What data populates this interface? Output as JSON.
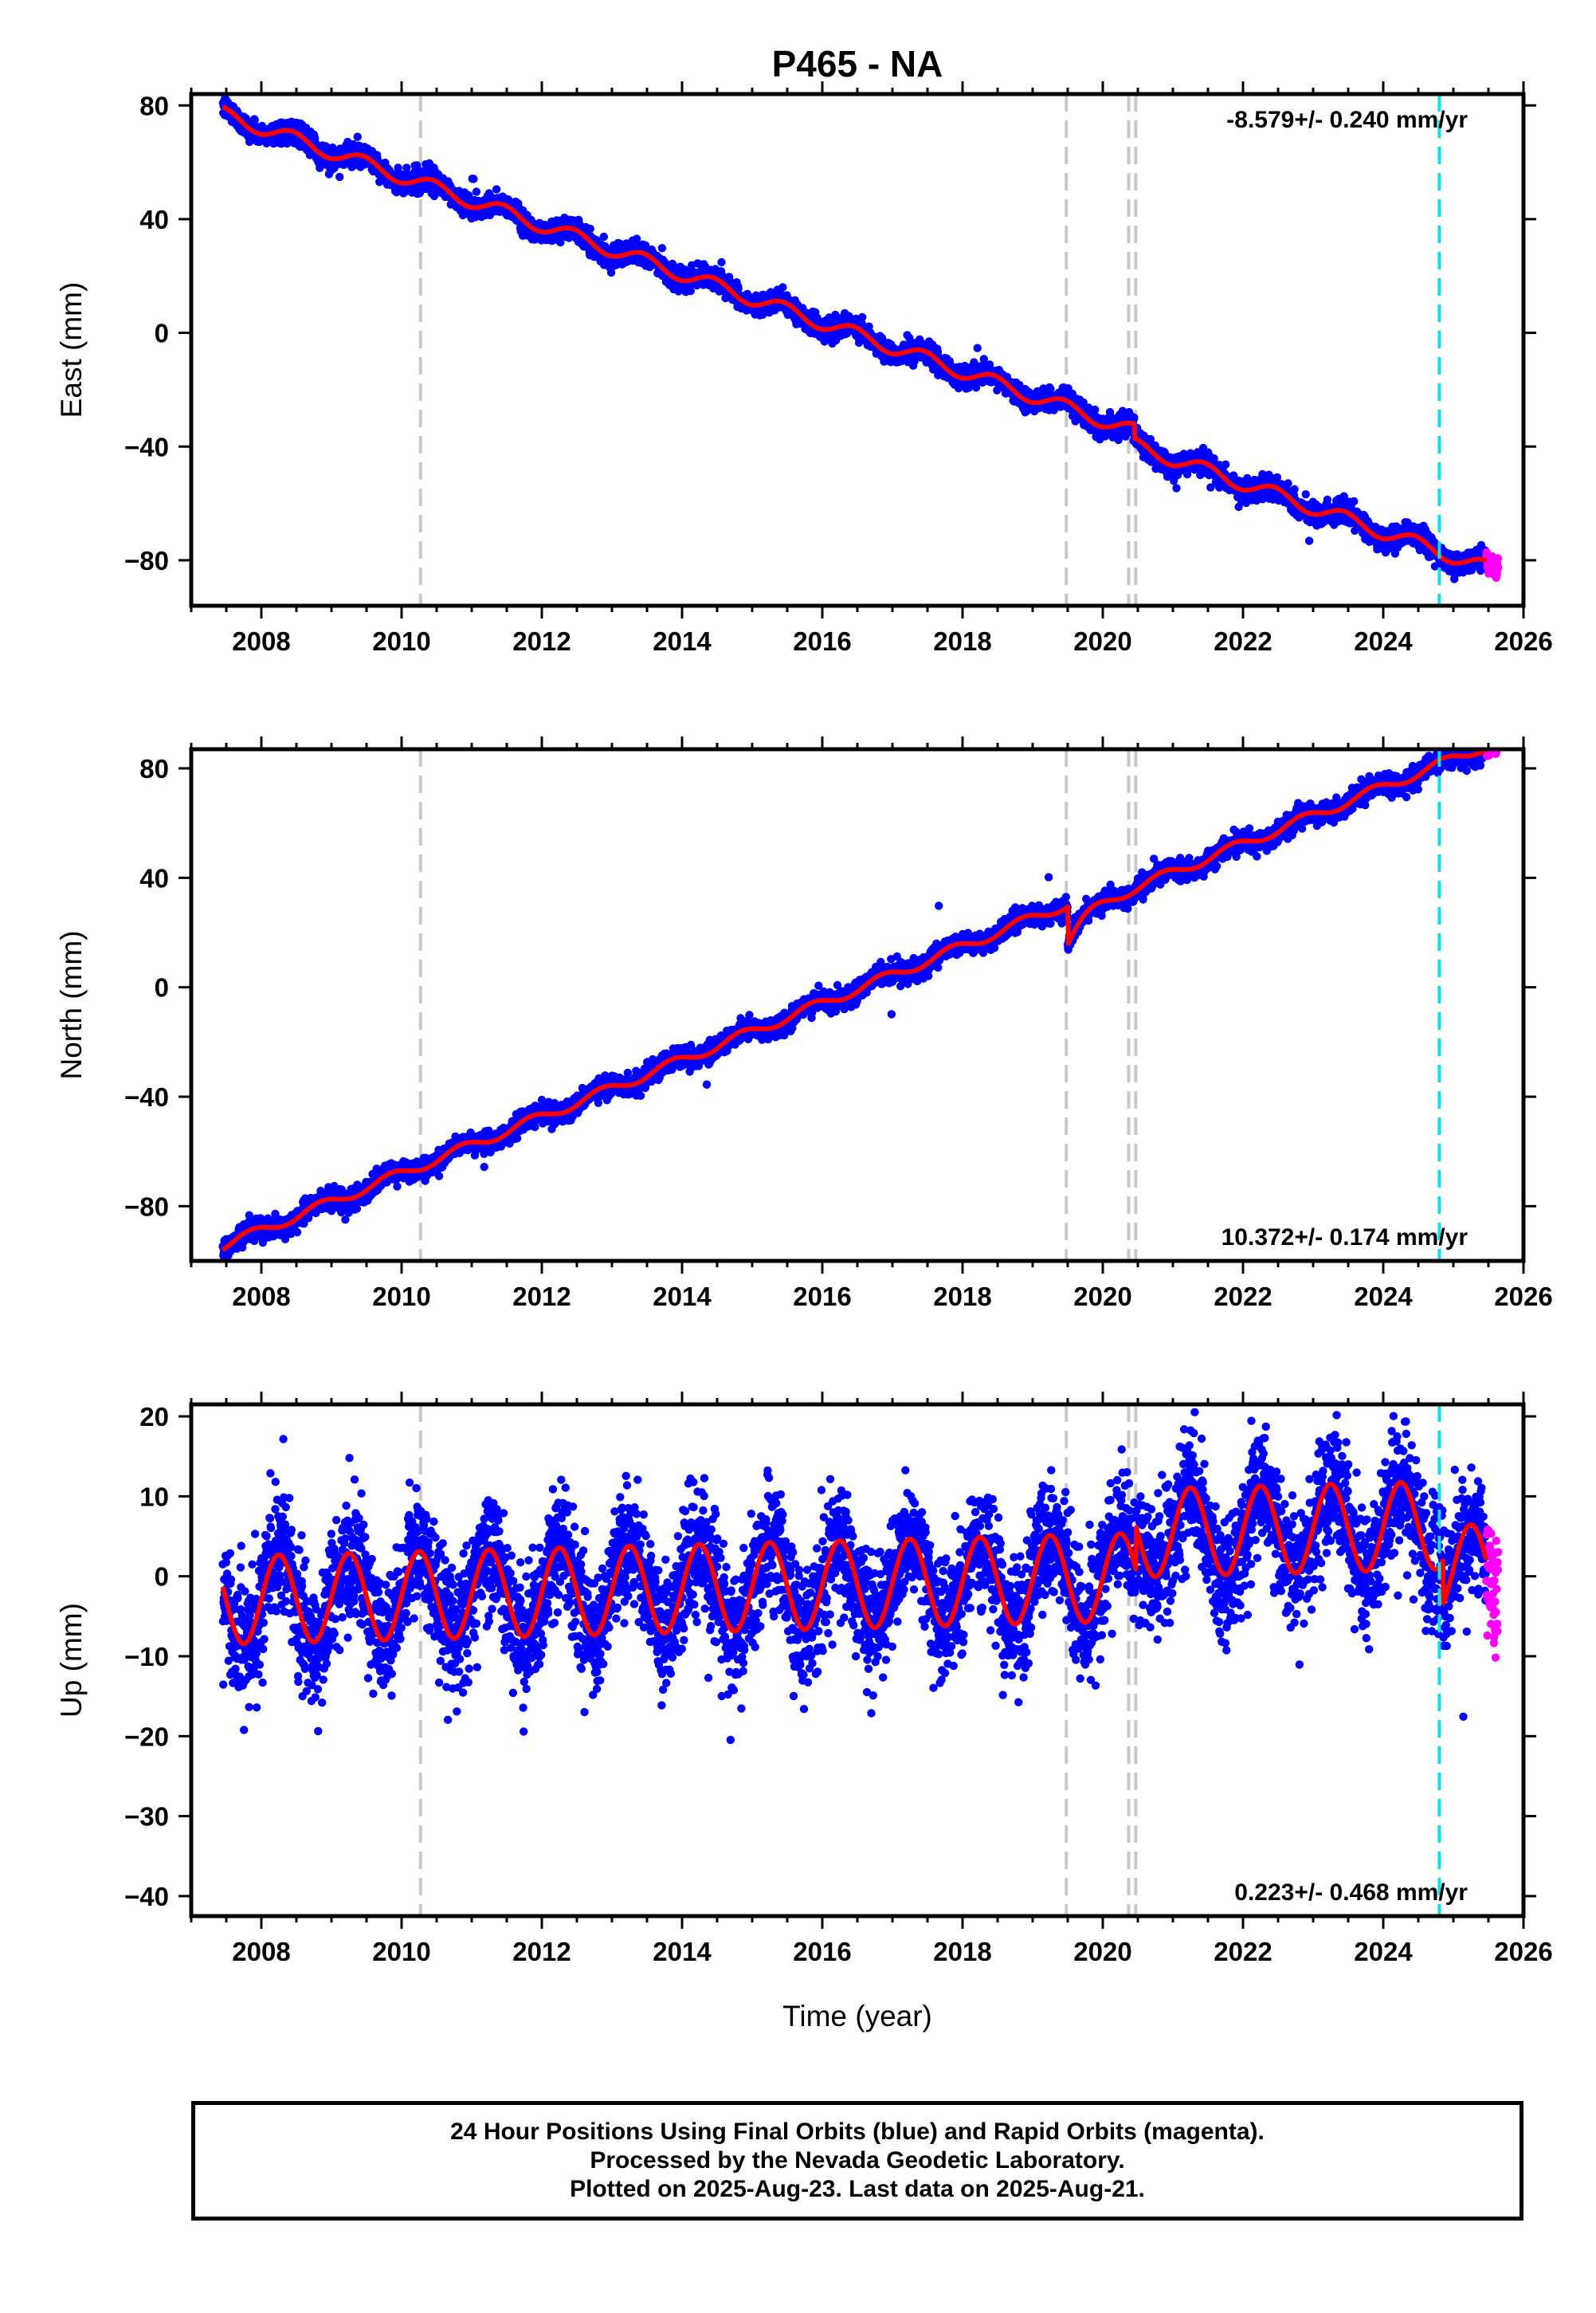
{
  "title": "P465 - NA",
  "xlabel": "Time (year)",
  "colors": {
    "final_orbits": "#0000ff",
    "rapid_orbits": "#ff00ff",
    "model": "#ff0000",
    "equipment_change": "#c8c8c8",
    "earthquake": "#00e5ee"
  },
  "footer": {
    "line1": "24 Hour Positions Using Final Orbits (blue) and Rapid Orbits (magenta).",
    "line2": "Processed by the Nevada Geodetic Laboratory.",
    "line3": "Plotted on 2025-Aug-23. Last data on 2025-Aug-21."
  },
  "chart_data": [
    {
      "type": "scatter",
      "component": "East",
      "ylabel": "East (mm)",
      "xlim": [
        2007.0,
        2026.0
      ],
      "ylim": [
        -96,
        84
      ],
      "xticks": [
        2008,
        2010,
        2012,
        2014,
        2016,
        2018,
        2020,
        2022,
        2024,
        2026
      ],
      "xtick_labels": [
        "2008",
        "2010",
        "2012",
        "2014",
        "2016",
        "2018",
        "2020",
        "2022",
        "2024",
        "2026"
      ],
      "yticks": [
        -80,
        -40,
        0,
        40,
        80
      ],
      "ytick_labels": [
        "−80",
        "−40",
        "0",
        "40",
        "80"
      ],
      "rate_label": "-8.579+/- 0.240 mm/yr",
      "rate_position": "top-right",
      "data_start": 2007.45,
      "final_end": 2025.47,
      "data_end": 2025.64,
      "model": {
        "reference_epoch": 2007.5,
        "value_at_reference": 76.5,
        "rate": -8.579,
        "annual_amplitude": 2.5,
        "annual_phase": 0.2,
        "offsets": [
          {
            "epoch": 2020.45,
            "step": -5
          }
        ]
      },
      "scatter_sigma": 1.8,
      "equipment_changes": [
        2010.27,
        2019.48,
        2020.37,
        2020.47
      ],
      "earthquake_events": [
        2024.8
      ]
    },
    {
      "type": "scatter",
      "component": "North",
      "ylabel": "North (mm)",
      "xlim": [
        2007.0,
        2026.0
      ],
      "ylim": [
        -100,
        87
      ],
      "xticks": [
        2008,
        2010,
        2012,
        2014,
        2016,
        2018,
        2020,
        2022,
        2024,
        2026
      ],
      "xtick_labels": [
        "2008",
        "2010",
        "2012",
        "2014",
        "2016",
        "2018",
        "2020",
        "2022",
        "2024",
        "2026"
      ],
      "yticks": [
        -80,
        -40,
        0,
        40,
        80
      ],
      "ytick_labels": [
        "−80",
        "−40",
        "0",
        "40",
        "80"
      ],
      "rate_label": "10.372+/- 0.174 mm/yr",
      "rate_position": "bottom-right",
      "data_start": 2007.45,
      "final_end": 2025.47,
      "data_end": 2025.64,
      "model": {
        "reference_epoch": 2007.5,
        "value_at_reference": -94.0,
        "rate": 10.372,
        "annual_amplitude": 1.8,
        "annual_phase": 0.6,
        "offsets": [
          {
            "epoch": 2019.5,
            "step": -14
          }
        ]
      },
      "postseismic": {
        "epoch": 2019.5,
        "amplitude": 10,
        "tau": 0.25
      },
      "scatter_sigma": 1.8,
      "equipment_changes": [
        2010.27,
        2019.48,
        2020.37,
        2020.47
      ],
      "earthquake_events": [
        2024.8
      ]
    },
    {
      "type": "scatter",
      "component": "Up",
      "ylabel": "Up (mm)",
      "xlim": [
        2007.0,
        2026.0
      ],
      "ylim": [
        -42.5,
        21.5
      ],
      "xticks": [
        2008,
        2010,
        2012,
        2014,
        2016,
        2018,
        2020,
        2022,
        2024,
        2026
      ],
      "xtick_labels": [
        "2008",
        "2010",
        "2012",
        "2014",
        "2016",
        "2018",
        "2020",
        "2022",
        "2024",
        "2026"
      ],
      "yticks": [
        -40,
        -30,
        -20,
        -10,
        0,
        10,
        20
      ],
      "ytick_labels": [
        "−40",
        "−30",
        "−20",
        "−10",
        "0",
        "10",
        "20"
      ],
      "rate_label": "0.223+/- 0.468 mm/yr",
      "rate_position": "bottom-right",
      "data_start": 2007.45,
      "final_end": 2025.47,
      "data_end": 2025.64,
      "model": {
        "reference_epoch": 2007.5,
        "value_at_reference": -3.0,
        "rate": 0.223,
        "annual_amplitude": 5.5,
        "annual_phase": 0.0,
        "offsets": [
          {
            "epoch": 2020.47,
            "step": 5.5
          },
          {
            "epoch": 2024.85,
            "step": -5.5
          }
        ]
      },
      "scatter_sigma": 3.8,
      "equipment_changes": [
        2010.27,
        2019.48,
        2020.37,
        2020.47
      ],
      "earthquake_events": [
        2024.8
      ]
    }
  ]
}
